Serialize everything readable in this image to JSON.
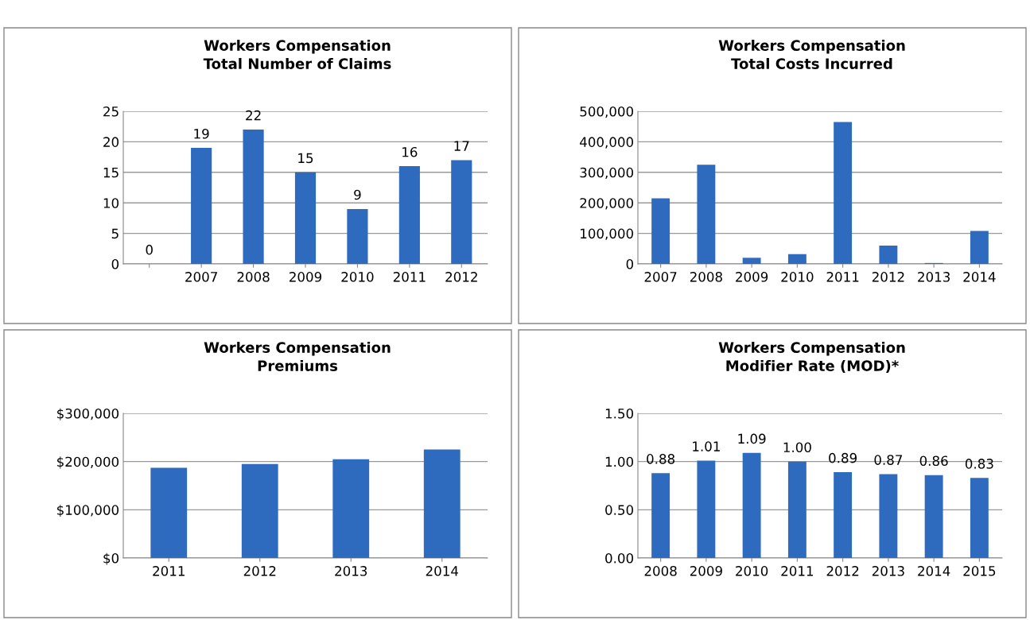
{
  "chart_data": [
    {
      "type": "bar",
      "title": "Workers Compensation\nTotal Number of Claims",
      "categories": [
        null,
        "2007",
        "2008",
        "2009",
        "2010",
        "2011",
        "2012"
      ],
      "values": [
        0,
        19,
        22,
        15,
        9,
        16,
        17
      ],
      "color": "#2e6bbf",
      "ylim": [
        0,
        25
      ],
      "yticks": [
        0,
        5,
        10,
        15,
        20,
        25
      ],
      "grid": "y",
      "data_labels": true
    },
    {
      "type": "bar",
      "title": "Workers Compensation\nTotal Costs Incurred",
      "categories": [
        "2007",
        "2008",
        "2009",
        "2010",
        "2011",
        "2012",
        "2013",
        "2014"
      ],
      "values": [
        215000,
        325000,
        20000,
        32000,
        465000,
        60000,
        3000,
        108000
      ],
      "color": "#2e6bbf",
      "ylim": [
        0,
        500000
      ],
      "yticks": [
        {
          "value": 0,
          "label": "0"
        },
        {
          "value": 100000,
          "label": "100,000"
        },
        {
          "value": 200000,
          "label": "200,000"
        },
        {
          "value": 300000,
          "label": "300,000"
        },
        {
          "value": 400000,
          "label": "400,000"
        },
        {
          "value": 500000,
          "label": "500,000"
        }
      ],
      "grid": "y"
    },
    {
      "type": "bar",
      "title": "Workers Compensation\nPremiums",
      "categories": [
        "2011",
        "2012",
        "2013",
        "2014"
      ],
      "values": [
        187000,
        195000,
        205000,
        225000
      ],
      "color": "#2e6bbf",
      "ylim": [
        0,
        300000
      ],
      "yticks": [
        {
          "value": 0,
          "label": "$0"
        },
        {
          "value": 100000,
          "label": "$100,000"
        },
        {
          "value": 200000,
          "label": "$200,000"
        },
        {
          "value": 300000,
          "label": "$300,000"
        }
      ],
      "grid": "y"
    },
    {
      "type": "bar",
      "title": "Workers Compensation\nModifier Rate (MOD)*",
      "categories": [
        "2008",
        "2009",
        "2010",
        "2011",
        "2012",
        "2013",
        "2014",
        "2015"
      ],
      "values": [
        0.88,
        1.01,
        1.09,
        1.0,
        0.89,
        0.87,
        0.86,
        0.83
      ],
      "value_labels": [
        "0.88",
        "1.01",
        "1.09",
        "1.00",
        "0.89",
        "0.87",
        "0.86",
        "0.83"
      ],
      "color": "#2e6bbf",
      "ylim": [
        0,
        1.5
      ],
      "yticks": [
        {
          "value": 0,
          "label": "0.00"
        },
        {
          "value": 0.5,
          "label": "0.50"
        },
        {
          "value": 1.0,
          "label": "1.00"
        },
        {
          "value": 1.5,
          "label": "1.50"
        }
      ],
      "grid": "y"
    }
  ]
}
